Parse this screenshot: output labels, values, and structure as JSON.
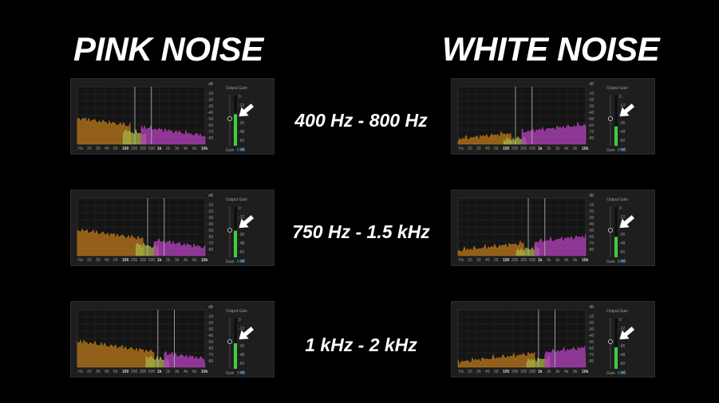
{
  "headings": {
    "pink": "PINK NOISE",
    "white": "WHITE NOISE"
  },
  "ranges": [
    "400 Hz - 800 Hz",
    "750 Hz - 1.5 kHz",
    "1 kHz - 2 kHz"
  ],
  "analyzer": {
    "db_unit": "dB",
    "db_ticks": [
      "-10",
      "-20",
      "-30",
      "-40",
      "-50",
      "-60",
      "-70",
      "-80"
    ],
    "freq_ticks": [
      "Hz",
      "20",
      "30",
      "40",
      "60",
      "100",
      "200",
      "300",
      "500",
      "1k",
      "2k",
      "3k",
      "4k",
      "6k",
      "10k"
    ],
    "output_gain_label": "Output Gain",
    "meter_ticks": [
      "0",
      "-12",
      "-24",
      "-36",
      "-48",
      "-60",
      "-inf"
    ],
    "gain_label": "Gain",
    "gain_value": "0 dB"
  },
  "colors": {
    "background": "#000000",
    "low_band": "#b5741c",
    "mid_band": "#a6b040",
    "high_band": "#b040b8",
    "meter_green": "#3ecf3e",
    "arrow": "#ffffff"
  },
  "panels": [
    {
      "id": "pink-400-800",
      "noise": "pink",
      "band": "400 Hz - 800 Hz",
      "meter_level": 0.62
    },
    {
      "id": "white-400-800",
      "noise": "white",
      "band": "400 Hz - 800 Hz",
      "meter_level": 0.38
    },
    {
      "id": "pink-750-1500",
      "noise": "pink",
      "band": "750 Hz - 1.5 kHz",
      "meter_level": 0.52
    },
    {
      "id": "white-750-1500",
      "noise": "white",
      "band": "750 Hz - 1.5 kHz",
      "meter_level": 0.4
    },
    {
      "id": "pink-1k-2k",
      "noise": "pink",
      "band": "1 kHz - 2 kHz",
      "meter_level": 0.5
    },
    {
      "id": "white-1k-2k",
      "noise": "white",
      "band": "1 kHz - 2 kHz",
      "meter_level": 0.42
    }
  ]
}
